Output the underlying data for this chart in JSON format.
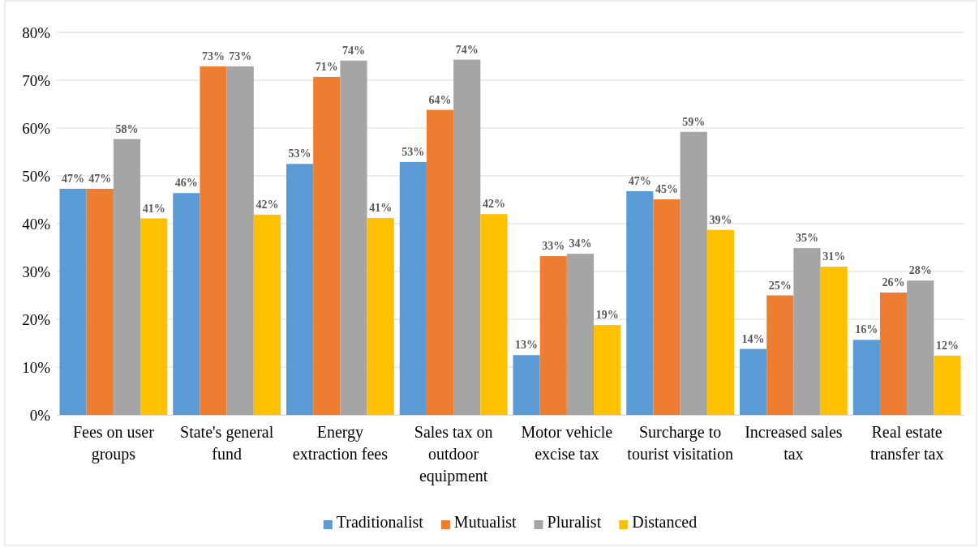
{
  "chart_data": {
    "type": "bar",
    "categories": [
      "Fees on user groups",
      "State's general fund",
      "Energy extraction fees",
      "Sales tax on outdoor equipment",
      "Motor vehicle excise tax",
      "Surcharge to tourist visitation",
      "Increased sales tax",
      "Real estate transfer tax"
    ],
    "series": [
      {
        "name": "Traditionalist",
        "color": "#5b9bd5",
        "values": [
          47.3,
          46.4,
          52.5,
          52.9,
          12.5,
          46.8,
          13.8,
          15.7
        ],
        "value_labels": [
          "47%",
          "46%",
          "53%",
          "53%",
          "13%",
          "47%",
          "14%",
          "16%"
        ]
      },
      {
        "name": "Mutualist",
        "color": "#ed7d31",
        "values": [
          47.3,
          72.9,
          70.7,
          63.8,
          33.2,
          45.1,
          25.0,
          25.6
        ],
        "value_labels": [
          "47%",
          "73%",
          "71%",
          "64%",
          "33%",
          "45%",
          "25%",
          "26%"
        ]
      },
      {
        "name": "Pluralist",
        "color": "#a5a5a5",
        "values": [
          57.7,
          72.9,
          74.1,
          74.3,
          33.7,
          59.2,
          34.9,
          28.1
        ],
        "value_labels": [
          "58%",
          "73%",
          "74%",
          "74%",
          "34%",
          "59%",
          "35%",
          "28%"
        ]
      },
      {
        "name": "Distanced",
        "color": "#ffc000",
        "values": [
          41.1,
          41.9,
          41.2,
          42.0,
          18.8,
          38.7,
          31.0,
          12.4
        ],
        "value_labels": [
          "41%",
          "42%",
          "41%",
          "42%",
          "19%",
          "39%",
          "31%",
          "12%"
        ]
      }
    ],
    "ylim": [
      0,
      80
    ],
    "yticks": [
      {
        "value": 0,
        "label": "0%"
      },
      {
        "value": 10,
        "label": "10%"
      },
      {
        "value": 20,
        "label": "20%"
      },
      {
        "value": 30,
        "label": "30%"
      },
      {
        "value": 40,
        "label": "40%"
      },
      {
        "value": 50,
        "label": "50%"
      },
      {
        "value": 60,
        "label": "60%"
      },
      {
        "value": 70,
        "label": "70%"
      },
      {
        "value": 80,
        "label": "80%"
      }
    ],
    "grid": "y",
    "legend": "bottom"
  }
}
